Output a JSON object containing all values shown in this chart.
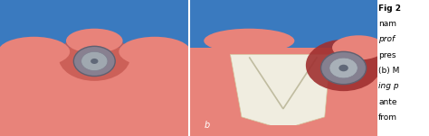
{
  "fig_width": 4.74,
  "fig_height": 1.51,
  "dpi": 100,
  "panel_a": {
    "bg_blue": "#3a7abf",
    "gum_color": "#e8837a",
    "gum_dark": "#c85a52",
    "tooth_left_color": "#f5f0dc",
    "tooth_center_color": "#f0ede0",
    "tooth_right_color": "#f5f0dc",
    "implant_ring_outer": "#b03030",
    "implant_ring_mid": "#606070",
    "implant_cap_color": "#888898",
    "label": ""
  },
  "panel_b": {
    "bg_blue": "#3a7abf",
    "gum_color": "#e8837a",
    "gum_dark": "#a03030",
    "tooth_left_color": "#f5f0dc",
    "tooth_center_color": "#f0ede0",
    "tooth_right_color": "#f5f0dc",
    "implant_ring_outer": "#8b1a1a",
    "implant_ring_mid": "#606070",
    "implant_cap_color": "#888898",
    "label": "b"
  },
  "caption_lines": [
    [
      "Fig 2",
      true,
      false
    ],
    [
      "nam",
      false,
      false
    ],
    [
      "prof",
      false,
      true
    ],
    [
      "pres",
      false,
      false
    ],
    [
      "(b) M",
      false,
      false
    ],
    [
      "ing p",
      false,
      true
    ],
    [
      "ante",
      false,
      false
    ],
    [
      "from",
      false,
      false
    ]
  ],
  "divider_color": "white",
  "divider_linewidth": 1.5
}
